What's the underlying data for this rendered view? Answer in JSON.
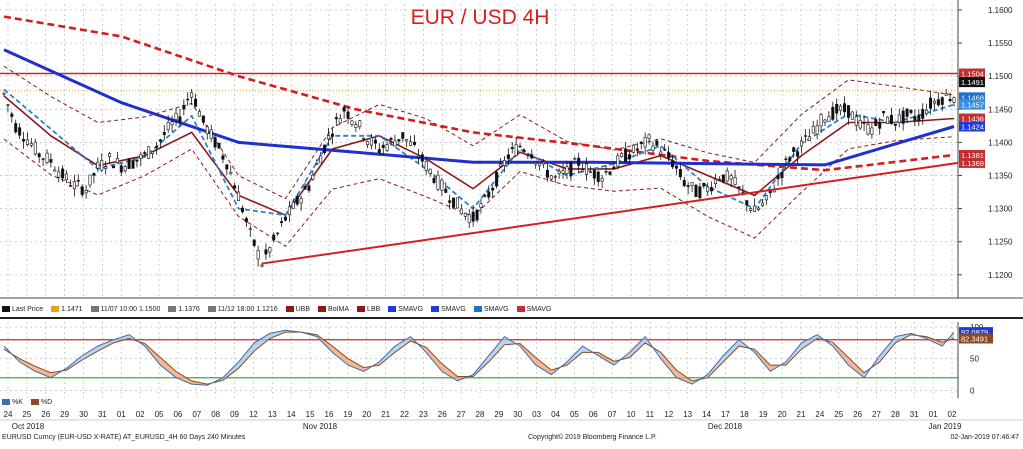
{
  "chart_data": [
    {
      "type": "line",
      "title": "EUR / USD 4H",
      "ylim": [
        1.1165,
        1.1615
      ],
      "y_ticks": [
        "1.1600",
        "1.1550",
        "1.1500",
        "1.1450",
        "1.1400",
        "1.1350",
        "1.1300",
        "1.1250",
        "1.1200"
      ],
      "x_ticks": [
        "24",
        "25",
        "26",
        "29",
        "30",
        "31",
        "01",
        "02",
        "05",
        "06",
        "07",
        "08",
        "09",
        "12",
        "13",
        "14",
        "15",
        "16",
        "19",
        "20",
        "21",
        "22",
        "23",
        "26",
        "27",
        "28",
        "29",
        "30",
        "03",
        "04",
        "05",
        "06",
        "07",
        "10",
        "11",
        "12",
        "13",
        "14",
        "17",
        "18",
        "19",
        "20",
        "21",
        "24",
        "25",
        "26",
        "27",
        "28",
        "31",
        "01",
        "02"
      ],
      "month_labels": [
        "Oct 2018",
        "Nov 2018",
        "Dec 2018",
        "Jan 2019"
      ],
      "price_series": [
        [
          0,
          1.1473
        ],
        [
          6,
          1.1425
        ],
        [
          12,
          1.1405
        ],
        [
          18,
          1.1382
        ],
        [
          24,
          1.1372
        ],
        [
          30,
          1.135
        ],
        [
          36,
          1.1335
        ],
        [
          42,
          1.133
        ],
        [
          48,
          1.1362
        ],
        [
          54,
          1.1375
        ],
        [
          60,
          1.1365
        ],
        [
          66,
          1.137
        ],
        [
          72,
          1.138
        ],
        [
          78,
          1.1395
        ],
        [
          84,
          1.142
        ],
        [
          90,
          1.144
        ],
        [
          96,
          1.1478
        ],
        [
          102,
          1.143
        ],
        [
          108,
          1.14
        ],
        [
          114,
          1.137
        ],
        [
          120,
          1.132
        ],
        [
          126,
          1.126
        ],
        [
          132,
          1.1218
        ],
        [
          138,
          1.125
        ],
        [
          144,
          1.1285
        ],
        [
          150,
          1.131
        ],
        [
          156,
          1.1335
        ],
        [
          162,
          1.138
        ],
        [
          168,
          1.142
        ],
        [
          174,
          1.145
        ],
        [
          180,
          1.1432
        ],
        [
          186,
          1.1405
        ],
        [
          192,
          1.139
        ],
        [
          198,
          1.14
        ],
        [
          204,
          1.141
        ],
        [
          210,
          1.139
        ],
        [
          216,
          1.1365
        ],
        [
          222,
          1.134
        ],
        [
          228,
          1.132
        ],
        [
          234,
          1.1298
        ],
        [
          240,
          1.1285
        ],
        [
          246,
          1.131
        ],
        [
          252,
          1.1345
        ],
        [
          258,
          1.138
        ],
        [
          264,
          1.1395
        ],
        [
          270,
          1.1385
        ],
        [
          276,
          1.136
        ],
        [
          282,
          1.1345
        ],
        [
          288,
          1.1355
        ],
        [
          294,
          1.137
        ],
        [
          300,
          1.1355
        ],
        [
          306,
          1.135
        ],
        [
          312,
          1.1365
        ],
        [
          318,
          1.138
        ],
        [
          324,
          1.139
        ],
        [
          330,
          1.1402
        ],
        [
          336,
          1.139
        ],
        [
          342,
          1.137
        ],
        [
          348,
          1.134
        ],
        [
          354,
          1.1325
        ],
        [
          360,
          1.133
        ],
        [
          366,
          1.135
        ],
        [
          372,
          1.1345
        ],
        [
          378,
          1.132
        ],
        [
          384,
          1.1295
        ],
        [
          390,
          1.131
        ],
        [
          396,
          1.1345
        ],
        [
          402,
          1.1378
        ],
        [
          408,
          1.1395
        ],
        [
          414,
          1.1415
        ],
        [
          420,
          1.144
        ],
        [
          426,
          1.1447
        ],
        [
          432,
          1.1448
        ],
        [
          438,
          1.1425
        ],
        [
          444,
          1.142
        ],
        [
          450,
          1.1438
        ],
        [
          456,
          1.1432
        ],
        [
          462,
          1.144
        ],
        [
          468,
          1.1438
        ],
        [
          474,
          1.1458
        ],
        [
          480,
          1.1468
        ],
        [
          486,
          1.1471
        ]
      ],
      "price_label": "1.1491",
      "sma_blue": [
        [
          0,
          1.154
        ],
        [
          60,
          1.146
        ],
        [
          120,
          1.14
        ],
        [
          180,
          1.1385
        ],
        [
          240,
          1.137
        ],
        [
          300,
          1.137
        ],
        [
          360,
          1.1368
        ],
        [
          420,
          1.1366
        ],
        [
          486,
          1.1424
        ]
      ],
      "sma_blue_dashed": [
        [
          0,
          1.148
        ],
        [
          24,
          1.142
        ],
        [
          48,
          1.136
        ],
        [
          72,
          1.1378
        ],
        [
          96,
          1.144
        ],
        [
          120,
          1.13
        ],
        [
          144,
          1.129
        ],
        [
          168,
          1.141
        ],
        [
          192,
          1.141
        ],
        [
          216,
          1.136
        ],
        [
          240,
          1.13
        ],
        [
          264,
          1.139
        ],
        [
          288,
          1.135
        ],
        [
          312,
          1.1368
        ],
        [
          336,
          1.1395
        ],
        [
          360,
          1.1333
        ],
        [
          384,
          1.13
        ],
        [
          408,
          1.1398
        ],
        [
          432,
          1.1443
        ],
        [
          456,
          1.143
        ],
        [
          486,
          1.1457
        ]
      ],
      "sma_red_dashed": [
        [
          0,
          1.159
        ],
        [
          60,
          1.156
        ],
        [
          120,
          1.15
        ],
        [
          180,
          1.145
        ],
        [
          240,
          1.1415
        ],
        [
          300,
          1.1395
        ],
        [
          360,
          1.1372
        ],
        [
          420,
          1.1358
        ],
        [
          486,
          1.1381
        ]
      ],
      "bollinger_mid": [
        [
          0,
          1.147
        ],
        [
          24,
          1.141
        ],
        [
          48,
          1.1365
        ],
        [
          72,
          1.138
        ],
        [
          96,
          1.1415
        ],
        [
          120,
          1.132
        ],
        [
          144,
          1.129
        ],
        [
          168,
          1.139
        ],
        [
          192,
          1.141
        ],
        [
          216,
          1.1375
        ],
        [
          240,
          1.133
        ],
        [
          264,
          1.1385
        ],
        [
          288,
          1.136
        ],
        [
          312,
          1.136
        ],
        [
          336,
          1.138
        ],
        [
          360,
          1.135
        ],
        [
          384,
          1.132
        ],
        [
          408,
          1.138
        ],
        [
          432,
          1.143
        ],
        [
          456,
          1.143
        ],
        [
          486,
          1.1436
        ]
      ],
      "trendline": [
        [
          132,
          1.1217
        ],
        [
          486,
          1.1369
        ]
      ],
      "resistance": 1.1504,
      "support_dotted": 1.1478,
      "price_tags": [
        {
          "value": "1.1504",
          "y": 1.1504,
          "color": "#c03030"
        },
        {
          "value": "1.1491",
          "y": 1.1491,
          "color": "#111111"
        },
        {
          "value": "1.1468",
          "y": 1.1468,
          "color": "#1e73c8"
        },
        {
          "value": "1.1457",
          "y": 1.1457,
          "color": "#3a8fe0"
        },
        {
          "value": "1.1436",
          "y": 1.1436,
          "color": "#c03030"
        },
        {
          "value": "1.1424",
          "y": 1.1424,
          "color": "#1f3bd6"
        },
        {
          "value": "1.1381",
          "y": 1.1381,
          "color": "#c03030"
        },
        {
          "value": "1.1369",
          "y": 1.1369,
          "color": "#c03030"
        }
      ],
      "legend": [
        {
          "label": "Last Price",
          "color": "#111111"
        },
        {
          "label": "1.1471",
          "color": "#e8a020"
        },
        {
          "label": "11/07 10:00 1.1500",
          "color": "#777777"
        },
        {
          "label": "1.1376",
          "color": "#777777"
        },
        {
          "label": "11/12 18:00 1.1216",
          "color": "#777777"
        },
        {
          "label": "UBB",
          "color": "#8b1a1a"
        },
        {
          "label": "BoIMA",
          "color": "#8b1a1a"
        },
        {
          "label": "LBB",
          "color": "#8b1a1a"
        },
        {
          "label": "SMAVG",
          "color": "#1f3bd6"
        },
        {
          "label": "SMAVG",
          "color": "#1f3bd6"
        },
        {
          "label": "SMAVG",
          "color": "#1e73c8"
        },
        {
          "label": "SMAVG",
          "color": "#c03030"
        }
      ]
    },
    {
      "type": "line",
      "ylim": [
        -12,
        108
      ],
      "y_ticks": [
        "100",
        "50",
        "0"
      ],
      "upper_level": 80,
      "lower_level": 20,
      "k_series": [
        [
          0,
          70
        ],
        [
          8,
          45
        ],
        [
          16,
          30
        ],
        [
          24,
          20
        ],
        [
          32,
          35
        ],
        [
          40,
          55
        ],
        [
          48,
          70
        ],
        [
          56,
          80
        ],
        [
          64,
          88
        ],
        [
          72,
          70
        ],
        [
          80,
          40
        ],
        [
          88,
          20
        ],
        [
          96,
          10
        ],
        [
          104,
          8
        ],
        [
          112,
          20
        ],
        [
          120,
          45
        ],
        [
          128,
          75
        ],
        [
          136,
          90
        ],
        [
          144,
          95
        ],
        [
          152,
          92
        ],
        [
          160,
          85
        ],
        [
          168,
          60
        ],
        [
          176,
          40
        ],
        [
          184,
          30
        ],
        [
          192,
          45
        ],
        [
          200,
          70
        ],
        [
          208,
          85
        ],
        [
          216,
          60
        ],
        [
          224,
          30
        ],
        [
          232,
          15
        ],
        [
          240,
          25
        ],
        [
          248,
          55
        ],
        [
          256,
          85
        ],
        [
          264,
          70
        ],
        [
          272,
          40
        ],
        [
          280,
          25
        ],
        [
          288,
          45
        ],
        [
          296,
          70
        ],
        [
          304,
          55
        ],
        [
          312,
          40
        ],
        [
          320,
          60
        ],
        [
          328,
          85
        ],
        [
          336,
          50
        ],
        [
          344,
          20
        ],
        [
          352,
          10
        ],
        [
          360,
          25
        ],
        [
          368,
          55
        ],
        [
          376,
          80
        ],
        [
          384,
          60
        ],
        [
          392,
          30
        ],
        [
          400,
          45
        ],
        [
          408,
          75
        ],
        [
          416,
          88
        ],
        [
          424,
          70
        ],
        [
          432,
          40
        ],
        [
          440,
          20
        ],
        [
          448,
          55
        ],
        [
          456,
          85
        ],
        [
          464,
          90
        ],
        [
          472,
          82
        ],
        [
          480,
          70
        ],
        [
          486,
          92
        ]
      ],
      "d_series": [
        [
          0,
          65
        ],
        [
          8,
          50
        ],
        [
          16,
          38
        ],
        [
          24,
          28
        ],
        [
          32,
          32
        ],
        [
          40,
          48
        ],
        [
          48,
          62
        ],
        [
          56,
          75
        ],
        [
          64,
          82
        ],
        [
          72,
          74
        ],
        [
          80,
          52
        ],
        [
          88,
          30
        ],
        [
          96,
          15
        ],
        [
          104,
          10
        ],
        [
          112,
          16
        ],
        [
          120,
          35
        ],
        [
          128,
          62
        ],
        [
          136,
          82
        ],
        [
          144,
          92
        ],
        [
          152,
          92
        ],
        [
          160,
          88
        ],
        [
          168,
          70
        ],
        [
          176,
          50
        ],
        [
          184,
          36
        ],
        [
          192,
          40
        ],
        [
          200,
          60
        ],
        [
          208,
          78
        ],
        [
          216,
          68
        ],
        [
          224,
          42
        ],
        [
          232,
          22
        ],
        [
          240,
          22
        ],
        [
          248,
          45
        ],
        [
          256,
          72
        ],
        [
          264,
          74
        ],
        [
          272,
          52
        ],
        [
          280,
          32
        ],
        [
          288,
          40
        ],
        [
          296,
          60
        ],
        [
          304,
          60
        ],
        [
          312,
          46
        ],
        [
          320,
          52
        ],
        [
          328,
          75
        ],
        [
          336,
          60
        ],
        [
          344,
          32
        ],
        [
          352,
          15
        ],
        [
          360,
          20
        ],
        [
          368,
          45
        ],
        [
          376,
          70
        ],
        [
          384,
          65
        ],
        [
          392,
          40
        ],
        [
          400,
          40
        ],
        [
          408,
          65
        ],
        [
          416,
          82
        ],
        [
          424,
          76
        ],
        [
          432,
          52
        ],
        [
          440,
          28
        ],
        [
          448,
          45
        ],
        [
          456,
          75
        ],
        [
          464,
          88
        ],
        [
          472,
          85
        ],
        [
          480,
          76
        ],
        [
          486,
          82
        ]
      ],
      "tags": [
        {
          "value": "92.0879",
          "y": 92,
          "color": "#1f3bd6"
        },
        {
          "value": "82.3491",
          "y": 82,
          "color": "#8b4a20"
        }
      ],
      "legend": [
        {
          "label": "%K",
          "color": "#3a6fb0"
        },
        {
          "label": "%D",
          "color": "#8b4a20"
        }
      ]
    }
  ],
  "footer": {
    "left": "EURUSD Curncy (EUR-USD X-RATE) AT_EURUSD_4H 60 Days 240 Minutes",
    "center": "Copyright© 2019 Bloomberg Finance L.P.",
    "right": "02-Jan-2019 07:46:47"
  }
}
